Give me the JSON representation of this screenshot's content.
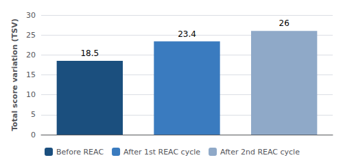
{
  "chart_data": {
    "type": "bar",
    "categories": [
      "Before REAC",
      "After 1st REAC cycle",
      "After 2nd REAC cycle"
    ],
    "values": [
      18.5,
      23.4,
      26
    ],
    "colors": [
      "#1B4F7E",
      "#3A7BBF",
      "#8FA9C8"
    ],
    "ylabel": "Total score variation (TSV)",
    "ylim": [
      0,
      30
    ],
    "yticks": [
      0,
      5,
      10,
      15,
      20,
      25,
      30
    ],
    "grid": true,
    "data_labels": true,
    "tick_labels": "y",
    "legend": "bottom left"
  }
}
